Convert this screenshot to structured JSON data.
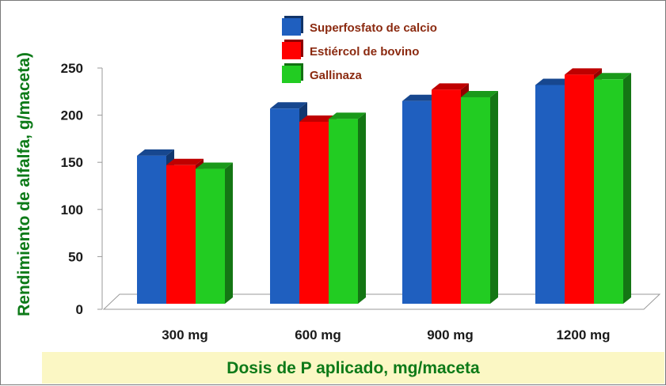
{
  "chart_data": {
    "type": "bar",
    "title": "",
    "xlabel": "Dosis de P aplicado, mg/maceta",
    "ylabel": "Rendimiento de alfalfa, g/maceta)",
    "ylim": [
      0,
      250
    ],
    "yticks": [
      0,
      50,
      100,
      150,
      200,
      250
    ],
    "categories": [
      "300 mg",
      "600 mg",
      "900 mg",
      "1200 mg"
    ],
    "legend_position": "top-center",
    "series": [
      {
        "name": "Superfosfato de calcio",
        "color": "#1f5fbf",
        "values": [
          157,
          207,
          215,
          232
        ]
      },
      {
        "name": "Estiércol de bovino",
        "color": "#ff0000",
        "values": [
          147,
          193,
          227,
          243
        ]
      },
      {
        "name": "Gallinaza",
        "color": "#22cc22",
        "values": [
          143,
          196,
          219,
          238
        ]
      }
    ]
  }
}
